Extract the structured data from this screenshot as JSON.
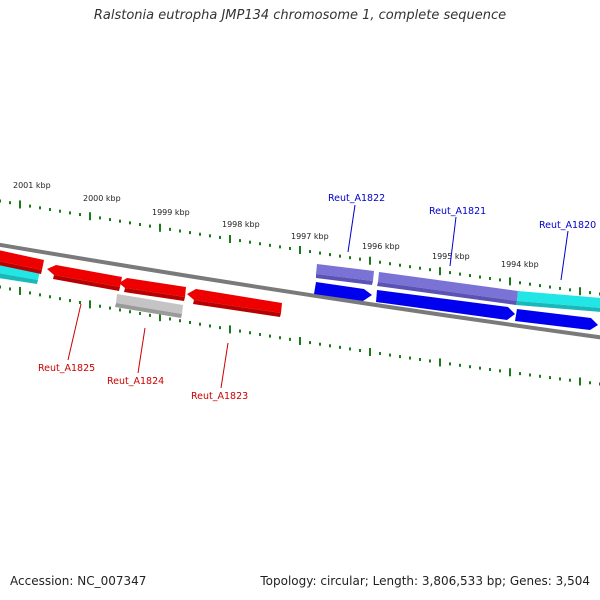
{
  "title": "Ralstonia eutropha JMP134 chromosome 1, complete sequence",
  "footer": {
    "accession": "Accession: NC_007347",
    "stats": "Topology: circular; Length: 3,806,533 bp; Genes: 3,504"
  },
  "ruler_labels": [
    "2001 kbp",
    "2000 kbp",
    "1999 kbp",
    "1998 kbp",
    "1997 kbp",
    "1996 kbp",
    "1995 kbp",
    "1994 kbp"
  ],
  "gene_labels": {
    "a1825": "Reut_A1825",
    "a1824": "Reut_A1824",
    "a1823": "Reut_A1823",
    "a1822": "Reut_A1822",
    "a1821": "Reut_A1821",
    "a1820": "Reut_A1820"
  },
  "colors": {
    "reverse_strand": "#ee0000",
    "forward_strand": "#0000ee",
    "highlight_purple": "#7b72d6",
    "cyan": "#22e6e6",
    "gray": "#bbbbbb",
    "backbone": "#808080",
    "ticks": "#1a7a1a"
  }
}
